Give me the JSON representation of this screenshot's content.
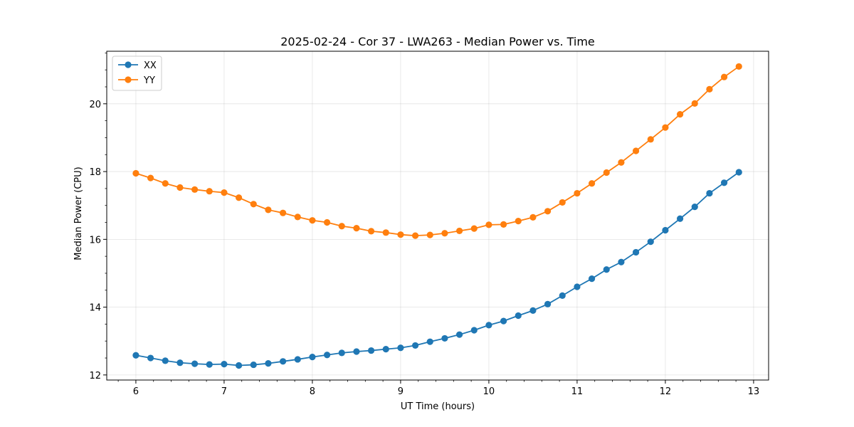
{
  "chart_data": {
    "type": "line",
    "title": "2025-02-24 - Cor 37 - LWA263 - Median Power vs. Time",
    "xlabel": "UT Time (hours)",
    "ylabel": "Median Power (CPU)",
    "xlim": [
      5.67,
      13.17
    ],
    "ylim": [
      11.85,
      21.55
    ],
    "xticks": [
      6,
      7,
      8,
      9,
      10,
      11,
      12,
      13
    ],
    "yticks": [
      12,
      14,
      16,
      18,
      20
    ],
    "xtick_labels": [
      "6",
      "7",
      "8",
      "9",
      "10",
      "11",
      "12",
      "13"
    ],
    "ytick_labels": [
      "12",
      "14",
      "16",
      "18",
      "20"
    ],
    "grid": true,
    "legend_position": "top-left",
    "x": [
      6.0,
      6.1667,
      6.3333,
      6.5,
      6.6667,
      6.8333,
      7.0,
      7.1667,
      7.3333,
      7.5,
      7.6667,
      7.8333,
      8.0,
      8.1667,
      8.3333,
      8.5,
      8.6667,
      8.8333,
      9.0,
      9.1667,
      9.3333,
      9.5,
      9.6667,
      9.8333,
      10.0,
      10.1667,
      10.3333,
      10.5,
      10.6667,
      10.8333,
      11.0,
      11.1667,
      11.3333,
      11.5,
      11.6667,
      11.8333,
      12.0,
      12.1667,
      12.3333,
      12.5,
      12.6667,
      12.8333
    ],
    "series": [
      {
        "name": "XX",
        "color": "#1f77b4",
        "values": [
          12.58,
          12.5,
          12.42,
          12.36,
          12.33,
          12.31,
          12.32,
          12.28,
          12.3,
          12.34,
          12.4,
          12.46,
          12.53,
          12.59,
          12.65,
          12.69,
          12.72,
          12.76,
          12.8,
          12.87,
          12.98,
          13.08,
          13.19,
          13.32,
          13.47,
          13.59,
          13.75,
          13.9,
          14.09,
          14.34,
          14.6,
          14.84,
          15.11,
          15.33,
          15.62,
          15.93,
          16.27,
          16.61,
          16.96,
          17.36,
          17.67,
          17.98
        ]
      },
      {
        "name": "YY",
        "color": "#ff7f0e",
        "values": [
          17.95,
          17.81,
          17.65,
          17.53,
          17.47,
          17.42,
          17.38,
          17.23,
          17.04,
          16.87,
          16.78,
          16.66,
          16.56,
          16.5,
          16.39,
          16.33,
          16.24,
          16.2,
          16.14,
          16.11,
          16.13,
          16.18,
          16.25,
          16.32,
          16.43,
          16.44,
          16.54,
          16.65,
          16.83,
          17.09,
          17.36,
          17.65,
          17.97,
          18.27,
          18.61,
          18.95,
          19.3,
          19.69,
          20.01,
          20.43,
          20.79,
          21.1
        ]
      }
    ]
  }
}
